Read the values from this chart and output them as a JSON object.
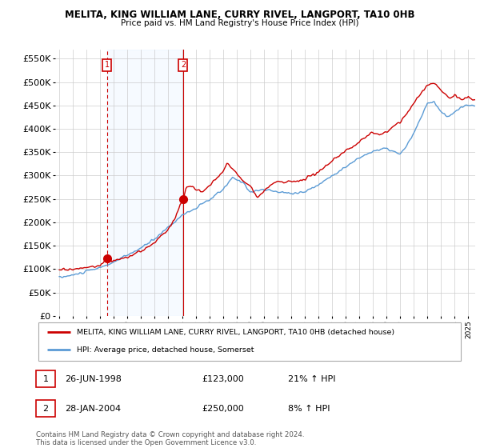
{
  "title": "MELITA, KING WILLIAM LANE, CURRY RIVEL, LANGPORT, TA10 0HB",
  "subtitle": "Price paid vs. HM Land Registry's House Price Index (HPI)",
  "red_color": "#cc0000",
  "blue_color": "#5b9bd5",
  "shade_color": "#ddeeff",
  "grid_color": "#cccccc",
  "sale1_x": 1998.49,
  "sale1_y": 123000,
  "sale1_label": "1",
  "sale1_date": "26-JUN-1998",
  "sale1_price": "£123,000",
  "sale1_hpi": "21% ↑ HPI",
  "sale2_x": 2004.08,
  "sale2_y": 250000,
  "sale2_label": "2",
  "sale2_date": "28-JAN-2004",
  "sale2_price": "£250,000",
  "sale2_hpi": "8% ↑ HPI",
  "ylim": [
    0,
    570000
  ],
  "yticks": [
    0,
    50000,
    100000,
    150000,
    200000,
    250000,
    300000,
    350000,
    400000,
    450000,
    500000,
    550000
  ],
  "xlim": [
    1994.7,
    2025.5
  ],
  "legend_label_red": "MELITA, KING WILLIAM LANE, CURRY RIVEL, LANGPORT, TA10 0HB (detached house)",
  "legend_label_blue": "HPI: Average price, detached house, Somerset",
  "footnote": "Contains HM Land Registry data © Crown copyright and database right 2024.\nThis data is licensed under the Open Government Licence v3.0."
}
